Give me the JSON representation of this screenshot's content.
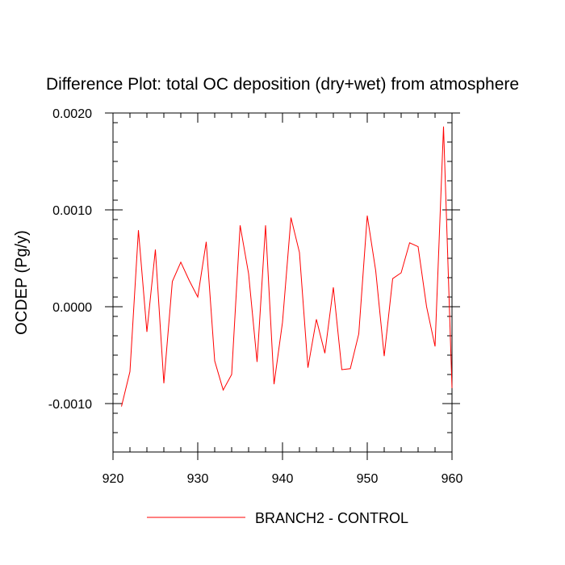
{
  "chart_data": {
    "type": "line",
    "title": "Difference Plot: total OC deposition (dry+wet) from atmosphere",
    "xlabel": "",
    "ylabel": "OCDEP  (Pg/y)",
    "xlim": [
      920,
      960
    ],
    "ylim": [
      -0.0015,
      0.002
    ],
    "x_ticks": [
      920,
      930,
      940,
      950,
      960
    ],
    "x_tick_labels": [
      "920",
      "930",
      "940",
      "950",
      "960"
    ],
    "y_ticks": [
      -0.001,
      0.0,
      0.001,
      0.002
    ],
    "y_tick_labels": [
      "-0.0010",
      "0.0000",
      "0.0010",
      "0.0020"
    ],
    "grid": false,
    "legend_position": "bottom-center",
    "series": [
      {
        "name": "BRANCH2 - CONTROL",
        "color": "#ff0000",
        "x": [
          921,
          922,
          923,
          924,
          925,
          926,
          927,
          928,
          929,
          930,
          931,
          932,
          933,
          934,
          935,
          936,
          937,
          938,
          939,
          940,
          941,
          942,
          943,
          944,
          945,
          946,
          947,
          948,
          949,
          950,
          951,
          952,
          953,
          954,
          955,
          956,
          957,
          958,
          959,
          960
        ],
        "values": [
          -0.00103,
          -0.00067,
          0.00079,
          -0.00026,
          0.00059,
          -0.00079,
          0.00026,
          0.00046,
          0.00027,
          0.0001,
          0.00067,
          -0.00056,
          -0.00086,
          -0.0007,
          0.00084,
          0.00034,
          -0.00057,
          0.00084,
          -0.0008,
          -0.00016,
          0.00092,
          0.00056,
          -0.00063,
          -0.00013,
          -0.00048,
          0.0002,
          -0.00065,
          -0.00064,
          -0.00028,
          0.00094,
          0.00037,
          -0.00051,
          0.00029,
          0.00035,
          0.00066,
          0.00062,
          0.0,
          -0.00041,
          0.00186,
          -0.00084
        ]
      }
    ]
  }
}
